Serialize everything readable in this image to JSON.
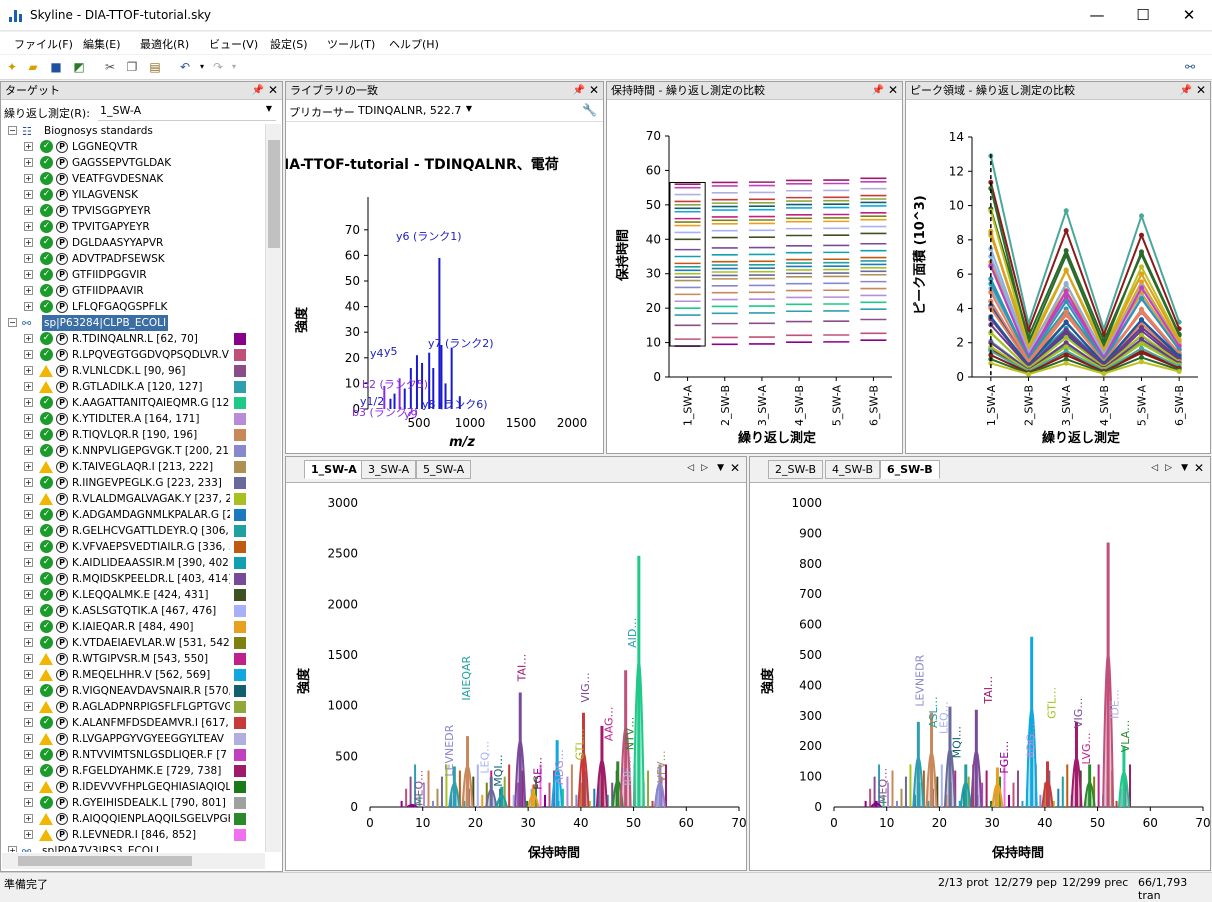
{
  "window": {
    "title": "Skyline - DIA-TTOF-tutorial.sky",
    "min": "—",
    "max": "☐",
    "close": "✕"
  },
  "menu": [
    "ファイル(F)",
    "編集(E)",
    "最適化(R)",
    "ビュー(V)",
    "設定(S)",
    "ツール(T)",
    "ヘルプ(H)"
  ],
  "targets": {
    "title": "ターゲット",
    "replicate_label": "繰り返し測定(R):",
    "replicate_value": "1_SW-A",
    "group1": "Biognosys standards",
    "standards": [
      "LGGNEQVTR",
      "GAGSSEPVTGLDAK",
      "VEATFGVDESNAK",
      "YILAGVENSK",
      "TPVISGGPYEYR",
      "TPVITGAPYEYR",
      "DGLDAASYYAPVR",
      "ADVTPADFSEWSK",
      "GTFIIDPGGVIR",
      "GTFIIDPAAVIR",
      "LFLQFGAQGSPFLK"
    ],
    "group2": "sp|P63284|CLPB_ECOLI",
    "peptides": [
      {
        "t": "R.TDINQALNR.L [62, 70]",
        "s": "ok",
        "c": "#8b008b"
      },
      {
        "t": "R.LPQVEGTGGDVQPSQDLVR.V",
        "s": "ok",
        "c": "#c0507a"
      },
      {
        "t": "R.VLNLCDK.L [90, 96]",
        "s": "warn",
        "c": "#8b4c8b"
      },
      {
        "t": "R.GTLADILK.A [120, 127]",
        "s": "warn",
        "c": "#2f9fb0"
      },
      {
        "t": "K.AAGATTANITQAIEQMR.G [128",
        "s": "ok",
        "c": "#1ec98a"
      },
      {
        "t": "K.YTIDLTER.A [164, 171]",
        "s": "ok",
        "c": "#b88cd8"
      },
      {
        "t": "R.TIQVLQR.R [190, 196]",
        "s": "ok",
        "c": "#c8885a"
      },
      {
        "t": "K.NNPVLIGEPGVGK.T [200, 212]",
        "s": "ok",
        "c": "#8888cc"
      },
      {
        "t": "K.TAIVEGLAQR.I [213, 222]",
        "s": "warn",
        "c": "#b09050"
      },
      {
        "t": "R.IINGEVPEGLK.G [223, 233]",
        "s": "ok",
        "c": "#6a6a9a"
      },
      {
        "t": "R.VLALDMGALVAGAK.Y [237, 25",
        "s": "warn",
        "c": "#a8c020"
      },
      {
        "t": "K.ADGAMDAGNMLKPALAR.G [2",
        "s": "ok",
        "c": "#1a7ac0"
      },
      {
        "t": "R.GELHCVGATTLDEYR.Q [306,",
        "s": "ok",
        "c": "#20a0a0"
      },
      {
        "t": "K.VFVAEPSVEDTIAILR.G [336, 3",
        "s": "ok",
        "c": "#c05a10"
      },
      {
        "t": "K.AIDLIDEAASSIR.M [390, 402]",
        "s": "ok",
        "c": "#10a0b0"
      },
      {
        "t": "R.MQIDSKPEELDR.L [403, 414]",
        "s": "ok",
        "c": "#7a4a9a"
      },
      {
        "t": "K.LEQQALMK.E [424, 431]",
        "s": "ok",
        "c": "#405020"
      },
      {
        "t": "K.ASLSGTQTIK.A [467, 476]",
        "s": "ok",
        "c": "#a8b0f8"
      },
      {
        "t": "K.IAIEQAR.R [484, 490]",
        "s": "ok",
        "c": "#e8a020"
      },
      {
        "t": "K.VTDAEIAEVLAR.W [531, 542]",
        "s": "ok",
        "c": "#808010"
      },
      {
        "t": "R.WTGIPVSR.M [543, 550]",
        "s": "warn",
        "c": "#c0208a"
      },
      {
        "t": "R.MEQELHHR.V [562, 569]",
        "s": "warn",
        "c": "#10a8e0"
      },
      {
        "t": "R.VIGQNEAVDAVSNAIR.R [570,",
        "s": "ok",
        "c": "#106070"
      },
      {
        "t": "R.AGLADPNRPIGSFLFLGPTGVG",
        "s": "warn",
        "c": "#8fa838"
      },
      {
        "t": "K.ALANFMFDSDEAMVR.I [617, 6",
        "s": "ok",
        "c": "#c83a3a"
      },
      {
        "t": "R.LVGAPPGYVGYEEGGYLTEAV",
        "s": "warn",
        "c": "#b0b0e0"
      },
      {
        "t": "R.NTVVIMTSNLGSDLIQER.F [7",
        "s": "ok",
        "c": "#c040c0"
      },
      {
        "t": "R.FGELDYAHMK.E [729, 738]",
        "s": "ok",
        "c": "#a01a6a"
      },
      {
        "t": "R.IDEVVVFHPLGEQHIASIAQIQL",
        "s": "warn",
        "c": "#1a7a1a"
      },
      {
        "t": "R.GYEIHISDEALK.L [790, 801]",
        "s": "ok",
        "c": "#a0a0a0"
      },
      {
        "t": "R.AIQQQIENPLAQQILSGELVPGK",
        "s": "warn",
        "c": "#2a8a2a"
      },
      {
        "t": "R.LEVNEDR.I [846, 852]",
        "s": "warn",
        "c": "#f070f0"
      }
    ],
    "group3": "sp|P0A7V3|RS3_ECOLI"
  },
  "library": {
    "title": "ライブラリの一致",
    "precursor_label": "プリカーサー:",
    "precursor_value": "TDINQALNR, 522.7",
    "heading": "IA-TTOF-tutorial - TDINQALNR、電荷",
    "xlabel": "m/z",
    "ylabel": "強度",
    "ions": [
      "y6 (ランク1)",
      "y7 (ランク2)",
      "y4",
      "y5",
      "b2 (ランク5)",
      "y8 (ランク6)",
      "y1/2",
      "b3 (ランク7)",
      "y9"
    ]
  },
  "retention": {
    "title": "保持時間 - 繰り返し測定の比較",
    "ylabel": "保持時間",
    "xlabel": "繰り返し測定"
  },
  "peak": {
    "title": "ピーク領域 - 繰り返し測定の比較",
    "ylabel": "ピーク面積 (10^3)",
    "xlabel": "繰り返し測定"
  },
  "chrom_left": {
    "tabs": [
      "1_SW-A",
      "3_SW-A",
      "5_SW-A"
    ],
    "ylabel": "強度",
    "xlabel": "保持時間",
    "annotations": [
      "MEQ…",
      "LEVNEDR",
      "IAIEQAR",
      "LEQ…",
      "MQI…",
      "TAI…",
      "FGE…",
      "ADG…",
      "GTL…",
      "VIG…",
      "AAG…",
      "IDE…",
      "NTV…",
      "AID…",
      "VFV…"
    ]
  },
  "chrom_right": {
    "tabs": [
      "2_SW-B",
      "4_SW-B",
      "6_SW-B"
    ],
    "ylabel": "強度",
    "xlabel": "保持時間",
    "annotations": [
      "MEQ…",
      "LEVNEDR",
      "ASL…",
      "LEQ…",
      "MQI…",
      "TAI…",
      "FGE…",
      "ADG…",
      "GTL…",
      "VIG…",
      "LVG…",
      "IDE…",
      "VLA…",
      "VFV…"
    ]
  },
  "status": {
    "left": "準備完了",
    "prot": "2/13 prot",
    "pep": "12/279 pep",
    "prec": "12/299 prec",
    "tran": "66/1,793 tran"
  },
  "chart_data": [
    {
      "type": "bar",
      "title": "IA-TTOF-tutorial - TDINQALNR、電荷",
      "xlabel": "m/z",
      "ylabel": "強度",
      "xlim": [
        0,
        2000
      ],
      "ylim": [
        0,
        75
      ],
      "x": [
        160,
        220,
        260,
        310,
        360,
        420,
        480,
        530,
        600,
        640,
        700,
        720,
        760,
        820,
        900
      ],
      "values": [
        9,
        4,
        6,
        12,
        8,
        16,
        21,
        18,
        22,
        16,
        59,
        25,
        10,
        24,
        5
      ],
      "labels": [
        "b3 (ランク7)",
        "",
        "y1/2",
        "b2 (ランク5)",
        "",
        "y4",
        "y5",
        "",
        "",
        "",
        "y6 (ランク1)",
        "",
        "",
        "y7 (ランク2)",
        "y8 (ランク6)"
      ]
    },
    {
      "type": "scatter",
      "title": "保持時間 - 繰り返し測定の比較",
      "xlabel": "繰り返し測定",
      "ylabel": "保持時間",
      "ylim": [
        0,
        70
      ],
      "categories": [
        "1_SW-A",
        "2_SW-B",
        "3_SW-A",
        "4_SW-B",
        "5_SW-A",
        "6_SW-B"
      ]
    },
    {
      "type": "line",
      "title": "ピーク領域 - 繰り返し測定の比較",
      "xlabel": "繰り返し測定",
      "ylabel": "ピーク面積 (10^3)",
      "ylim": [
        0,
        14
      ],
      "categories": [
        "1_SW-A",
        "2_SW-B",
        "3_SW-A",
        "4_SW-B",
        "5_SW-A",
        "6_SW-B"
      ],
      "series": [
        {
          "values": [
            12.9,
            3.1,
            9.7,
            2.8,
            9.4,
            3.2
          ]
        },
        {
          "values": [
            11.0,
            2.0,
            7.1,
            1.8,
            7.3,
            2.5
          ]
        },
        {
          "values": [
            8.5,
            1.6,
            6.2,
            1.5,
            6.0,
            2.1
          ]
        },
        {
          "values": [
            6.5,
            1.2,
            5.0,
            1.1,
            5.2,
            1.8
          ]
        },
        {
          "values": [
            4.0,
            0.8,
            3.6,
            0.9,
            3.8,
            1.4
          ]
        },
        {
          "values": [
            2.0,
            0.4,
            2.0,
            0.5,
            2.2,
            0.8
          ]
        }
      ]
    },
    {
      "type": "line",
      "xlabel": "保持時間",
      "ylabel": "強度",
      "xlim": [
        0,
        70
      ],
      "ylim": [
        0,
        3000
      ],
      "peaks": [
        {
          "x": 8,
          "y": 30
        },
        {
          "x": 16,
          "y": 400
        },
        {
          "x": 18.5,
          "y": 700
        },
        {
          "x": 23,
          "y": 300
        },
        {
          "x": 25,
          "y": 200
        },
        {
          "x": 28.5,
          "y": 1130
        },
        {
          "x": 31,
          "y": 220
        },
        {
          "x": 35.5,
          "y": 660
        },
        {
          "x": 40.5,
          "y": 930
        },
        {
          "x": 44,
          "y": 800
        },
        {
          "x": 47,
          "y": 450
        },
        {
          "x": 48.5,
          "y": 1350
        },
        {
          "x": 51,
          "y": 2480
        },
        {
          "x": 55,
          "y": 420
        }
      ]
    },
    {
      "type": "line",
      "xlabel": "保持時間",
      "ylabel": "強度",
      "xlim": [
        0,
        70
      ],
      "ylim": [
        0,
        1000
      ],
      "peaks": [
        {
          "x": 8,
          "y": 20
        },
        {
          "x": 16,
          "y": 280
        },
        {
          "x": 18.5,
          "y": 310
        },
        {
          "x": 22,
          "y": 330
        },
        {
          "x": 25,
          "y": 140
        },
        {
          "x": 27,
          "y": 320
        },
        {
          "x": 31,
          "y": 130
        },
        {
          "x": 37.5,
          "y": 560
        },
        {
          "x": 40.5,
          "y": 150
        },
        {
          "x": 46,
          "y": 280
        },
        {
          "x": 48.5,
          "y": 140
        },
        {
          "x": 52,
          "y": 870
        },
        {
          "x": 55,
          "y": 200
        }
      ]
    }
  ]
}
